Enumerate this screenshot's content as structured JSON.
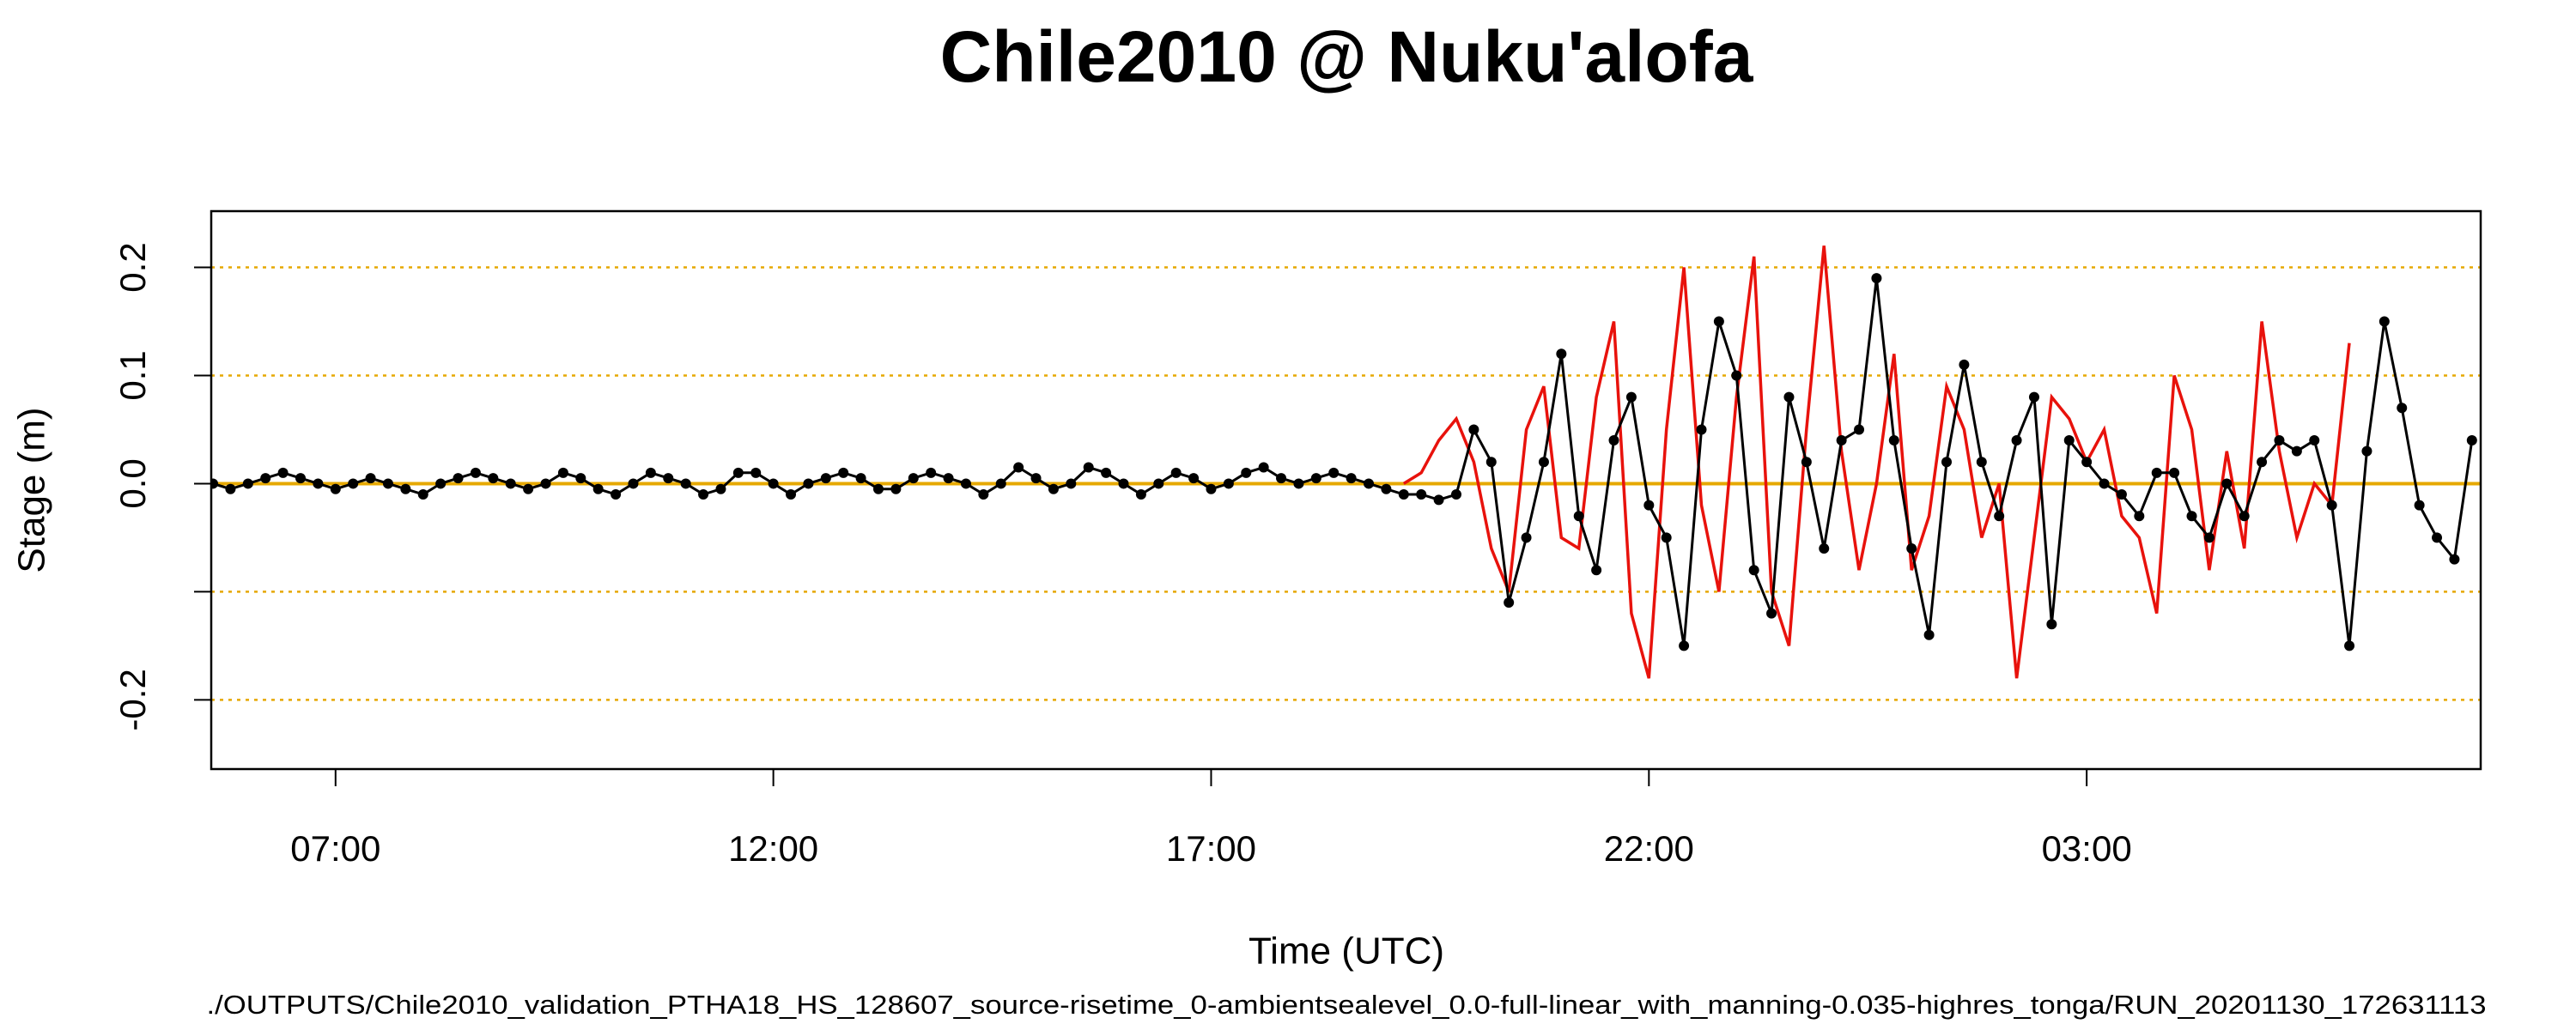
{
  "chart_data": {
    "type": "line",
    "title": "Chile2010 @ Nuku'alofa",
    "xlabel": "Time (UTC)",
    "ylabel": "Stage (m)",
    "footnote": "./OUTPUTS/Chile2010_validation_PTHA18_HS_128607_source-risetime_0-ambientsealevel_0.0-full-linear_with_manning-0.035-highres_tonga/RUN_20201130_172631113",
    "xlim": [
      5.58,
      31.5
    ],
    "xticks": [
      {
        "value": 7,
        "label": "07:00"
      },
      {
        "value": 12,
        "label": "12:00"
      },
      {
        "value": 17,
        "label": "17:00"
      },
      {
        "value": 22,
        "label": "22:00"
      },
      {
        "value": 27,
        "label": "03:00"
      }
    ],
    "ylim": [
      -0.264,
      0.252
    ],
    "yticks": [
      -0.2,
      {
        "value": -0.1,
        "label": null
      },
      {
        "value": 0,
        "label": "0.0"
      },
      0.1,
      0.2
    ],
    "grid": true,
    "grid_color": "#e6a800",
    "series": [
      {
        "color": "#000000",
        "marker": "circle",
        "x": [
          5.6,
          5.8,
          6,
          6.2,
          6.4,
          6.6,
          6.8,
          7,
          7.2,
          7.4,
          7.6,
          7.8,
          8,
          8.2,
          8.4,
          8.6,
          8.8,
          9,
          9.2,
          9.4,
          9.6,
          9.8,
          10,
          10.2,
          10.4,
          10.6,
          10.8,
          11,
          11.2,
          11.4,
          11.6,
          11.8,
          12,
          12.2,
          12.4,
          12.6,
          12.8,
          13,
          13.2,
          13.4,
          13.6,
          13.8,
          14,
          14.2,
          14.4,
          14.6,
          14.8,
          15,
          15.2,
          15.4,
          15.6,
          15.8,
          16,
          16.2,
          16.4,
          16.6,
          16.8,
          17,
          17.2,
          17.4,
          17.6,
          17.8,
          18,
          18.2,
          18.4,
          18.6,
          18.8,
          19,
          19.2,
          19.4,
          19.6,
          19.8,
          20,
          20.2,
          20.4,
          20.6,
          20.8,
          21,
          21.2,
          21.4,
          21.6,
          21.8,
          22,
          22.2,
          22.4,
          22.6,
          22.8,
          23,
          23.2,
          23.4,
          23.6,
          23.8,
          24,
          24.2,
          24.4,
          24.6,
          24.8,
          25,
          25.2,
          25.4,
          25.6,
          25.8,
          26,
          26.2,
          26.4,
          26.6,
          26.8,
          27,
          27.2,
          27.4,
          27.6,
          27.8,
          28,
          28.2,
          28.4,
          28.6,
          28.8,
          29,
          29.2,
          29.4,
          29.6,
          29.8,
          30,
          30.2,
          30.4,
          30.6,
          30.8,
          31,
          31.2,
          31.4
        ],
        "values": [
          0.0,
          -0.005,
          0.0,
          0.005,
          0.01,
          0.005,
          0.0,
          -0.005,
          0.0,
          0.005,
          0.0,
          -0.005,
          -0.01,
          0.0,
          0.005,
          0.01,
          0.005,
          0.0,
          -0.005,
          0.0,
          0.01,
          0.005,
          -0.005,
          -0.01,
          0.0,
          0.01,
          0.005,
          0.0,
          -0.01,
          -0.005,
          0.01,
          0.01,
          0.0,
          -0.01,
          0.0,
          0.005,
          0.01,
          0.005,
          -0.005,
          -0.005,
          0.005,
          0.01,
          0.005,
          0.0,
          -0.01,
          0.0,
          0.015,
          0.005,
          -0.005,
          0.0,
          0.015,
          0.01,
          0.0,
          -0.01,
          0.0,
          0.01,
          0.005,
          -0.005,
          0.0,
          0.01,
          0.015,
          0.005,
          0.0,
          0.005,
          0.01,
          0.005,
          0.0,
          -0.005,
          -0.01,
          -0.01,
          -0.015,
          -0.01,
          0.05,
          0.02,
          -0.11,
          -0.05,
          0.02,
          0.12,
          -0.03,
          -0.08,
          0.04,
          0.08,
          -0.02,
          -0.05,
          -0.15,
          0.05,
          0.15,
          0.1,
          -0.08,
          -0.12,
          0.08,
          0.02,
          -0.06,
          0.04,
          0.05,
          0.19,
          0.04,
          -0.06,
          -0.14,
          0.02,
          0.11,
          0.02,
          -0.03,
          0.04,
          0.08,
          -0.13,
          0.04,
          0.02,
          0.0,
          -0.01,
          -0.03,
          0.01,
          0.01,
          -0.03,
          -0.05,
          0.0,
          -0.03,
          0.02,
          0.04,
          0.03,
          0.04,
          -0.02,
          -0.15,
          0.03,
          0.15,
          0.07,
          -0.02,
          -0.05,
          -0.07,
          0.04
        ]
      },
      {
        "color": "#e8120c",
        "x": [
          19.2,
          19.4,
          19.6,
          19.8,
          20,
          20.2,
          20.4,
          20.6,
          20.8,
          21,
          21.2,
          21.4,
          21.6,
          21.8,
          22,
          22.2,
          22.4,
          22.6,
          22.8,
          23,
          23.2,
          23.4,
          23.6,
          23.8,
          24,
          24.2,
          24.4,
          24.6,
          24.8,
          25,
          25.2,
          25.4,
          25.6,
          25.8,
          26,
          26.2,
          26.4,
          26.6,
          26.8,
          27,
          27.2,
          27.4,
          27.6,
          27.8,
          28,
          28.2,
          28.4,
          28.6,
          28.8,
          29,
          29.2,
          29.4,
          29.6,
          29.8,
          30
        ],
        "values": [
          0.0,
          0.01,
          0.04,
          0.06,
          0.02,
          -0.06,
          -0.1,
          0.05,
          0.09,
          -0.05,
          -0.06,
          0.08,
          0.15,
          -0.12,
          -0.18,
          0.05,
          0.2,
          -0.02,
          -0.1,
          0.08,
          0.21,
          -0.1,
          -0.15,
          0.05,
          0.22,
          0.03,
          -0.08,
          0.0,
          0.12,
          -0.08,
          -0.03,
          0.09,
          0.05,
          -0.05,
          0.0,
          -0.18,
          -0.05,
          0.08,
          0.06,
          0.02,
          0.05,
          -0.03,
          -0.05,
          -0.12,
          0.1,
          0.05,
          -0.08,
          0.03,
          -0.06,
          0.15,
          0.03,
          -0.05,
          0.0,
          -0.02,
          0.13
        ]
      }
    ]
  }
}
